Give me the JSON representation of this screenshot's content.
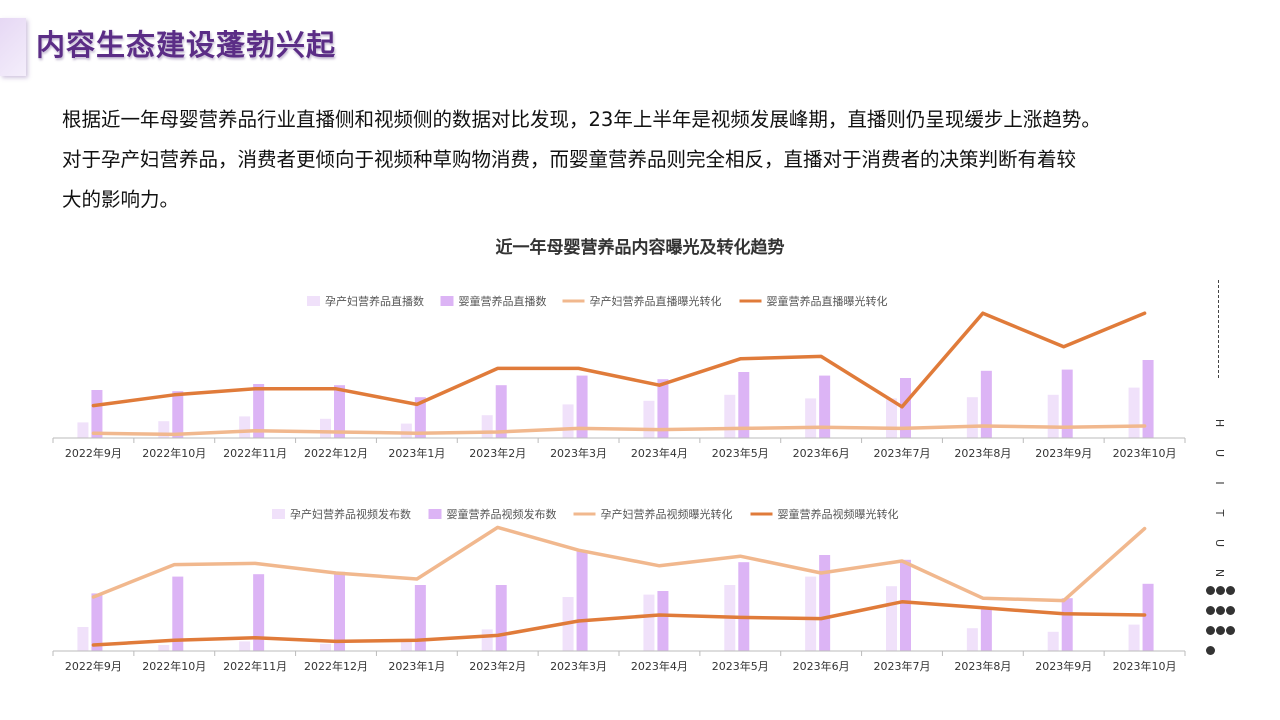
{
  "page": {
    "title": "内容生态建设蓬勃兴起",
    "intro": [
      "根据近一年母婴营养品行业直播侧和视频侧的数据对比发现，23年上半年是视频发展峰期，直播则仍呈现缓步上涨趋势。",
      "对于孕产妇营养品，消费者更倾向于视频种草购物消费，而婴童营养品则完全相反，直播对于消费者的决策判断有着较",
      "大的影响力。"
    ],
    "chart_title": "近一年母婴营养品内容曝光及转化趋势"
  },
  "side_decoration": {
    "letters": [
      "H",
      "U",
      "I",
      "T",
      "U",
      "N"
    ],
    "dots": 10
  },
  "colors": {
    "light_bar": "#f0e1fa",
    "dark_bar": "#dcb4f5",
    "light_line": "#f1b88e",
    "dark_line": "#e07b3a",
    "title": "#5b2d86"
  },
  "chart_data": [
    {
      "type": "bar+line",
      "title": "",
      "categories": [
        "2022年9月",
        "2022年10月",
        "2022年11月",
        "2022年12月",
        "2023年1月",
        "2023年2月",
        "2023年3月",
        "2023年4月",
        "2023年5月",
        "2023年6月",
        "2023年7月",
        "2023年8月",
        "2023年9月",
        "2023年10月"
      ],
      "value_scale": "relative, 0-100 (no axis values shown)",
      "series": [
        {
          "name": "孕产妇营养品直播数",
          "type": "bar",
          "values": [
            13,
            14,
            18,
            16,
            12,
            19,
            28,
            31,
            36,
            33,
            33,
            34,
            36,
            42
          ]
        },
        {
          "name": "婴童营养品直播数",
          "type": "bar",
          "values": [
            40,
            39,
            45,
            44,
            34,
            44,
            52,
            49,
            55,
            52,
            50,
            56,
            57,
            65
          ]
        },
        {
          "name": "孕产妇营养品直播曝光转化",
          "type": "line",
          "values": [
            4,
            3,
            6,
            5,
            4,
            5,
            8,
            7,
            8,
            9,
            8,
            10,
            9,
            10
          ]
        },
        {
          "name": "婴童营养品直播曝光转化",
          "type": "line",
          "values": [
            27,
            36,
            41,
            41,
            28,
            58,
            58,
            44,
            66,
            68,
            26,
            104,
            76,
            104
          ]
        }
      ]
    },
    {
      "type": "bar+line",
      "title": "",
      "categories": [
        "2022年9月",
        "2022年10月",
        "2022年11月",
        "2022年12月",
        "2023年1月",
        "2023年2月",
        "2023年3月",
        "2023年4月",
        "2023年5月",
        "2023年6月",
        "2023年7月",
        "2023年8月",
        "2023年9月",
        "2023年10月"
      ],
      "value_scale": "relative, 0-100 (no axis values shown)",
      "series": [
        {
          "name": "孕产妇营养品视频发布数",
          "type": "bar",
          "values": [
            20,
            5,
            8,
            6,
            8,
            18,
            45,
            47,
            55,
            62,
            54,
            19,
            16,
            22
          ]
        },
        {
          "name": "婴童营养品视频发布数",
          "type": "bar",
          "values": [
            48,
            62,
            64,
            66,
            55,
            55,
            84,
            50,
            74,
            80,
            76,
            36,
            44,
            56
          ]
        },
        {
          "name": "孕产妇营养品视频曝光转化",
          "type": "line",
          "values": [
            45,
            72,
            73,
            65,
            60,
            103,
            84,
            71,
            79,
            65,
            75,
            44,
            42,
            102
          ]
        },
        {
          "name": "婴童营养品视频曝光转化",
          "type": "line",
          "values": [
            5,
            9,
            11,
            8,
            9,
            13,
            25,
            30,
            28,
            27,
            41,
            36,
            31,
            30
          ]
        }
      ]
    }
  ]
}
